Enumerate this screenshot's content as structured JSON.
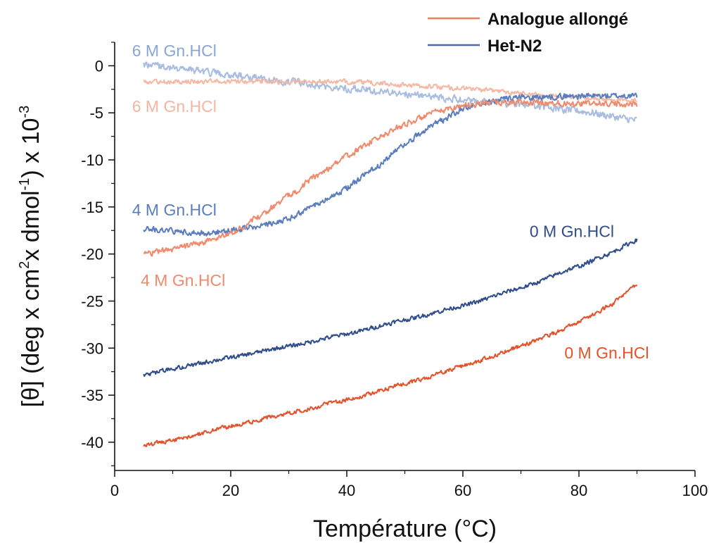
{
  "chart_data": {
    "type": "line",
    "xlabel": "Température (°C)",
    "ylabel_parts": [
      "[θ] (deg x cm",
      "2",
      "x dmol",
      "-1",
      ") x 10",
      "-3"
    ],
    "xlim": [
      0,
      100
    ],
    "ylim": [
      -43,
      2.5
    ],
    "x_ticks": [
      0,
      20,
      40,
      60,
      80,
      100
    ],
    "x_tick_labels": [
      "0",
      "20",
      "40",
      "60",
      "80",
      "100"
    ],
    "y_ticks": [
      0,
      -5,
      -10,
      -15,
      -20,
      -25,
      -30,
      -35,
      -40
    ],
    "y_tick_labels": [
      "0",
      "-5",
      "-10",
      "-15",
      "-20",
      "-25",
      "-30",
      "-35",
      "-40"
    ],
    "grid": false,
    "legend_position": "top-right",
    "legend": [
      {
        "label": "Analogue allongé",
        "color": "#ee8060"
      },
      {
        "label": "Het-N2",
        "color": "#4a6aae"
      }
    ],
    "series": [
      {
        "group": "Het-N2",
        "color": "#a9bde0",
        "noise": 0.35,
        "x": [
          5,
          10,
          20,
          30,
          40,
          50,
          60,
          70,
          80,
          90
        ],
        "y": [
          0.2,
          -0.2,
          -1.0,
          -1.7,
          -2.4,
          -3.0,
          -3.6,
          -4.1,
          -4.8,
          -5.8
        ]
      },
      {
        "group": "Analogue allongé",
        "color": "#f4b8a4",
        "noise": 0.22,
        "x": [
          5,
          20,
          40,
          60,
          80,
          90
        ],
        "y": [
          -1.7,
          -1.7,
          -1.7,
          -2.4,
          -3.4,
          -3.6
        ]
      },
      {
        "group": "Het-N2",
        "color": "#5b7dbd",
        "noise": 0.28,
        "x": [
          5,
          10,
          15,
          20,
          25,
          30,
          35,
          40,
          45,
          50,
          55,
          60,
          65,
          70,
          80,
          90
        ],
        "y": [
          -17.3,
          -17.6,
          -17.8,
          -17.5,
          -17.0,
          -16.2,
          -14.7,
          -13.0,
          -10.8,
          -8.3,
          -6.2,
          -4.6,
          -3.7,
          -3.4,
          -3.2,
          -3.2
        ]
      },
      {
        "group": "Analogue allongé",
        "color": "#ef8a6c",
        "noise": 0.28,
        "x": [
          5,
          10,
          15,
          20,
          25,
          30,
          35,
          40,
          45,
          50,
          55,
          60,
          65,
          70,
          80,
          90
        ],
        "y": [
          -20.0,
          -19.5,
          -18.8,
          -17.8,
          -16.0,
          -13.8,
          -11.6,
          -9.6,
          -7.8,
          -6.2,
          -5.0,
          -4.2,
          -3.9,
          -3.9,
          -4.0,
          -4.1
        ]
      },
      {
        "group": "Het-N2",
        "color": "#2e4d8a",
        "noise": 0.2,
        "x": [
          5,
          10,
          20,
          30,
          40,
          50,
          60,
          70,
          80,
          85,
          90
        ],
        "y": [
          -32.9,
          -32.2,
          -31.0,
          -29.8,
          -28.5,
          -27.0,
          -25.5,
          -23.6,
          -21.3,
          -20.0,
          -18.5
        ]
      },
      {
        "group": "Analogue allongé",
        "color": "#e4522b",
        "noise": 0.2,
        "x": [
          5,
          10,
          20,
          30,
          40,
          50,
          60,
          70,
          75,
          80,
          85,
          90
        ],
        "y": [
          -40.3,
          -39.8,
          -38.3,
          -36.9,
          -35.5,
          -33.8,
          -31.9,
          -29.8,
          -28.6,
          -27.2,
          -25.6,
          -23.2
        ]
      }
    ],
    "annotations": [
      {
        "text": "6 M Gn.HCl",
        "color": "#8aa6d8",
        "x": 3,
        "y": 1.6
      },
      {
        "text": "6 M Gn.HCl",
        "color": "#f2b6a2",
        "x": 3,
        "y": -4.3
      },
      {
        "text": "4 M Gn.HCl",
        "color": "#5b7dbd",
        "x": 3,
        "y": -15.3
      },
      {
        "text": "4 M Gn.HCl",
        "color": "#ef8a6c",
        "x": 4.5,
        "y": -22.8
      },
      {
        "text": "0 M Gn.HCl",
        "color": "#2e4d8a",
        "x": 71.5,
        "y": -17.6
      },
      {
        "text": "0 M Gn.HCl",
        "color": "#e4522b",
        "x": 77.5,
        "y": -30.5
      }
    ]
  }
}
